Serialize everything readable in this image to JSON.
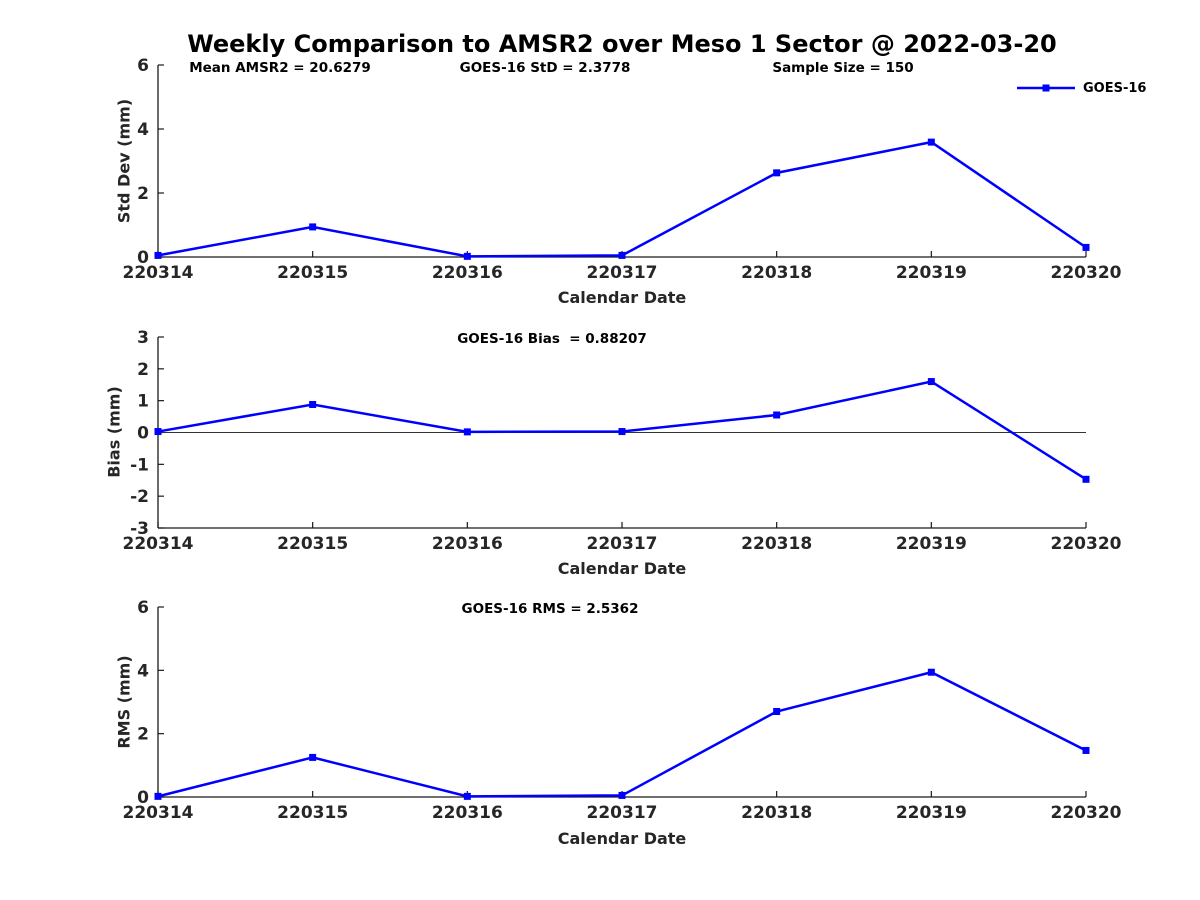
{
  "title": "Weekly Comparison to AMSR2 over Meso 1 Sector @ 2022-03-20",
  "legend": {
    "label": "GOES-16"
  },
  "colors": {
    "line": "#0000FF",
    "axis": "#1a1a1a",
    "tick_text": "#262626",
    "zero_line": "#333333"
  },
  "chart_data": [
    {
      "type": "line",
      "annotations": [
        "Mean AMSR2 = 20.6279",
        "GOES-16 StD = 2.3778",
        "Sample Size = 150"
      ],
      "categories": [
        "220314",
        "220315",
        "220316",
        "220317",
        "220318",
        "220319",
        "220320"
      ],
      "series": [
        {
          "name": "GOES-16",
          "values": [
            0.05,
            0.94,
            0.02,
            0.05,
            2.63,
            3.59,
            0.3
          ]
        }
      ],
      "xlabel": "Calendar Date",
      "ylabel": "Std Dev (mm)",
      "ylim": [
        0,
        6
      ],
      "yticks": [
        0,
        2,
        4,
        6
      ],
      "grid": false,
      "legend_entries": [
        "GOES-16"
      ],
      "legend_position": "top-right"
    },
    {
      "type": "line",
      "annotations": [
        "GOES-16 Bias  = 0.88207"
      ],
      "categories": [
        "220314",
        "220315",
        "220316",
        "220317",
        "220318",
        "220319",
        "220320"
      ],
      "series": [
        {
          "name": "GOES-16",
          "values": [
            0.03,
            0.88,
            0.02,
            0.03,
            0.55,
            1.6,
            -1.47
          ]
        }
      ],
      "xlabel": "Calendar Date",
      "ylabel": "Bias (mm)",
      "ylim": [
        -3,
        3
      ],
      "yticks": [
        -3,
        -2,
        -1,
        0,
        1,
        2,
        3
      ],
      "zero_line": true,
      "grid": false
    },
    {
      "type": "line",
      "annotations": [
        "GOES-16 RMS = 2.5362"
      ],
      "categories": [
        "220314",
        "220315",
        "220316",
        "220317",
        "220318",
        "220319",
        "220320"
      ],
      "series": [
        {
          "name": "GOES-16",
          "values": [
            0.02,
            1.25,
            0.02,
            0.05,
            2.7,
            3.94,
            1.47
          ]
        }
      ],
      "xlabel": "Calendar Date",
      "ylabel": "RMS (mm)",
      "ylim": [
        0,
        6
      ],
      "yticks": [
        0,
        2,
        4,
        6
      ],
      "grid": false
    }
  ]
}
